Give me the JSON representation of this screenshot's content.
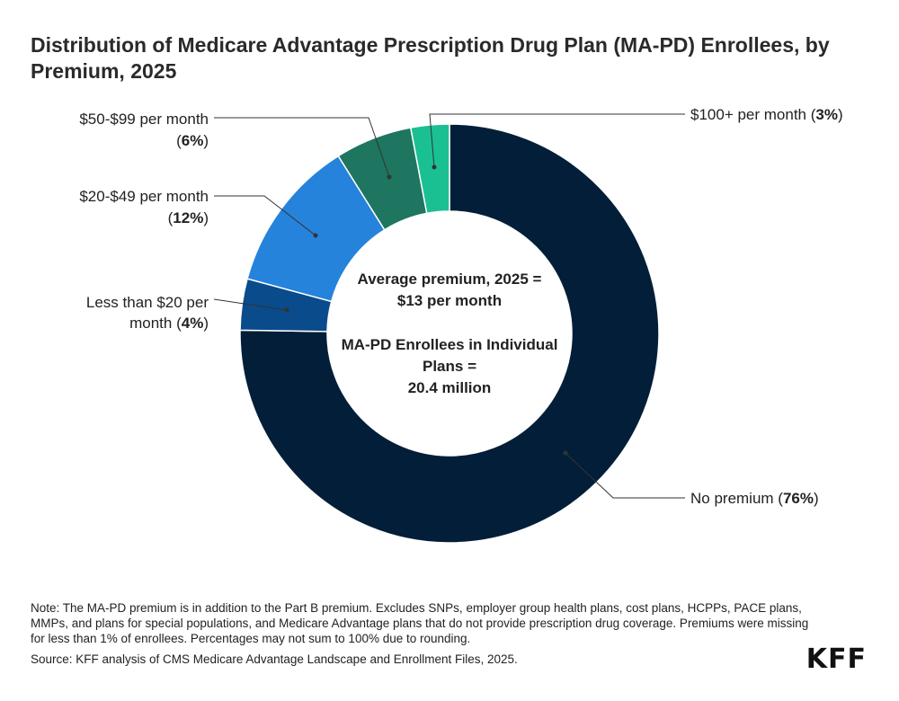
{
  "title": "Distribution of Medicare Advantage Prescription Drug Plan (MA-PD) Enrollees, by Premium, 2025",
  "chart_data": {
    "type": "pie",
    "donut": true,
    "slices": [
      {
        "name": "No premium",
        "value": 76,
        "pct_label": "76%",
        "color": "#031e38"
      },
      {
        "name": "Less than $20 per month",
        "value": 4,
        "pct_label": "4%",
        "color": "#0a4b8c"
      },
      {
        "name": "$20-$49 per month",
        "value": 12,
        "pct_label": "12%",
        "color": "#2583db"
      },
      {
        "name": "$50-$99 per month",
        "value": 6,
        "pct_label": "6%",
        "color": "#1e7560"
      },
      {
        "name": "$100+ per month",
        "value": 3,
        "pct_label": "3%",
        "color": "#1bc092"
      }
    ],
    "labels": {
      "no_premium": {
        "text": "No premium (",
        "bold": "76%",
        "close": ")"
      },
      "lt20": {
        "line1": "Less than $20 per",
        "line2": "month (",
        "bold": "4%",
        "close": ")"
      },
      "p20_49": {
        "line1": "$20-$49 per month",
        "line2": "(",
        "bold": "12%",
        "close": ")"
      },
      "p50_99": {
        "line1": "$50-$99 per month",
        "line2": "(",
        "bold": "6%",
        "close": ")"
      },
      "p100": {
        "text": "$100+ per month (",
        "bold": "3%",
        "close": ")"
      }
    },
    "center_text": {
      "line1": "Average premium, 2025 =",
      "line2": "$13 per month",
      "line3": "MA-PD Enrollees in Individual",
      "line4": "Plans =",
      "line5": "20.4 million"
    }
  },
  "footer": {
    "note": "Note: The MA-PD premium is in addition to the Part B premium. Excludes SNPs, employer group health plans, cost plans, HCPPs, PACE plans, MMPs, and plans for special populations, and Medicare Advantage plans that do not provide prescription drug coverage. Premiums were missing for less than 1% of enrollees. Percentages may not sum to 100% due to rounding.",
    "source": "Source: KFF analysis of CMS Medicare Advantage Landscape and Enrollment Files, 2025."
  },
  "logo": "KFF"
}
